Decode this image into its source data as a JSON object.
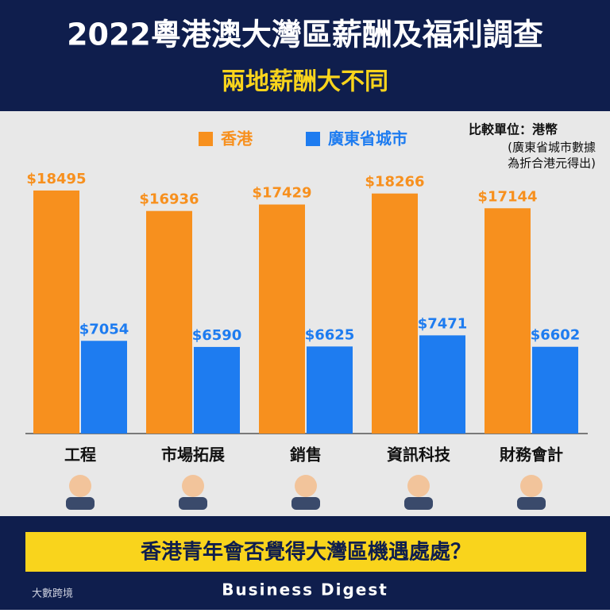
{
  "header": {
    "title": "2022粵港澳大灣區薪酬及福利調查",
    "subtitle": "兩地薪酬大不同"
  },
  "chart_data": {
    "type": "bar",
    "categories": [
      "工程",
      "市場拓展",
      "銷售",
      "資訊科技",
      "財務會計"
    ],
    "series": [
      {
        "name": "香港",
        "color": "#f7901e",
        "values": [
          18495,
          16936,
          17429,
          18266,
          17144
        ],
        "value_labels": [
          "$18495",
          "$16936",
          "$17429",
          "$18266",
          "$17144"
        ]
      },
      {
        "name": "廣東省城市",
        "color": "#1e7cf0",
        "values": [
          7054,
          6590,
          6625,
          7471,
          6602
        ],
        "value_labels": [
          "$7054",
          "$6590",
          "$6625",
          "$7471",
          "$6602"
        ]
      }
    ],
    "unit_note": "比較單位：港幣",
    "source_note": [
      "(廣東省城市數據",
      "為折合港元得出)"
    ]
  },
  "footer": {
    "question": "香港青年會否覺得大灣區機遇處處？",
    "brand": "Business Digest",
    "logo": "大數跨境"
  }
}
